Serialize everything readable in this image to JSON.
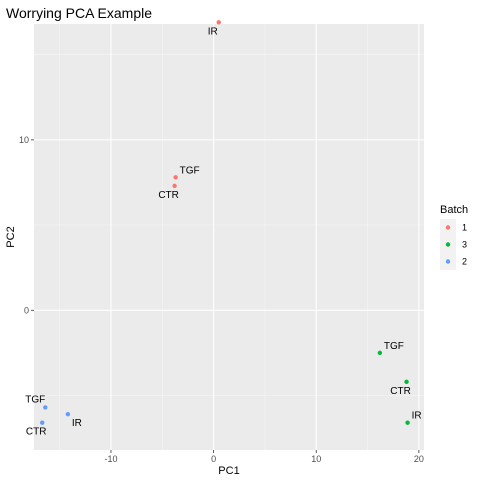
{
  "chart_data": {
    "type": "scatter",
    "title": "Worrying PCA Example",
    "xlabel": "PC1",
    "ylabel": "PC2",
    "xlim": [
      -17.5,
      20.5
    ],
    "ylim": [
      -8.2,
      16.8
    ],
    "x_ticks": [
      -10,
      0,
      10,
      20
    ],
    "y_ticks": [
      0,
      10
    ],
    "grid": true,
    "legend": {
      "title": "Batch",
      "placement": "right",
      "entries": [
        {
          "label": "1",
          "color": "#F8766D"
        },
        {
          "label": "3",
          "color": "#00BA38"
        },
        {
          "label": "2",
          "color": "#619CFF"
        }
      ]
    },
    "series": [
      {
        "name": "1",
        "color": "#F8766D",
        "points": [
          {
            "x": 0.5,
            "y": 16.9,
            "label": "IR",
            "label_pos": "below-left"
          },
          {
            "x": -3.7,
            "y": 7.8,
            "label": "TGF",
            "label_pos": "above-right"
          },
          {
            "x": -3.8,
            "y": 7.3,
            "label": "CTR",
            "label_pos": "below-left"
          }
        ]
      },
      {
        "name": "3",
        "color": "#00BA38",
        "points": [
          {
            "x": 16.2,
            "y": -2.5,
            "label": "TGF",
            "label_pos": "above-right"
          },
          {
            "x": 18.8,
            "y": -4.2,
            "label": "CTR",
            "label_pos": "below-left"
          },
          {
            "x": 18.9,
            "y": -6.6,
            "label": "IR",
            "label_pos": "above-right"
          }
        ]
      },
      {
        "name": "2",
        "color": "#619CFF",
        "points": [
          {
            "x": -16.4,
            "y": -5.7,
            "label": "TGF",
            "label_pos": "above-left"
          },
          {
            "x": -14.2,
            "y": -6.1,
            "label": "IR",
            "label_pos": "below-right"
          },
          {
            "x": -16.7,
            "y": -6.6,
            "label": "CTR",
            "label_pos": "below-left"
          }
        ]
      }
    ]
  }
}
